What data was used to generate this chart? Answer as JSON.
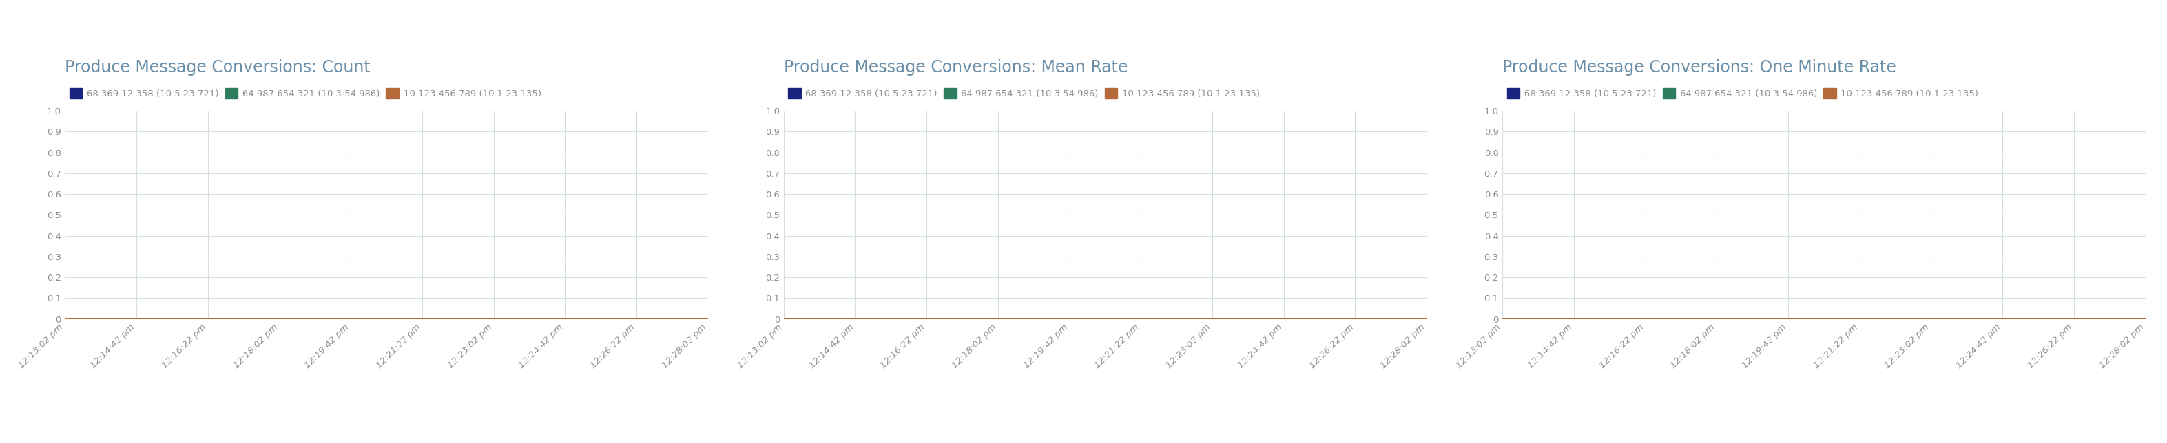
{
  "charts": [
    {
      "title": "Produce Message Conversions: Count",
      "title_color": "#6b8fa8"
    },
    {
      "title": "Produce Message Conversions: Mean Rate",
      "title_color": "#6b8fa8"
    },
    {
      "title": "Produce Message Conversions: One Minute Rate",
      "title_color": "#6b8fa8"
    }
  ],
  "legend_entries": [
    {
      "label": "68.369.12.358 (10.5.23.721)",
      "color": "#1a237e"
    },
    {
      "label": "64.987.654.321 (10.3.54.986)",
      "color": "#2e7d5e"
    },
    {
      "label": "10.123.456.789 (10.1.23.135)",
      "color": "#b5693a"
    }
  ],
  "x_ticks": [
    "12:13:02 pm",
    "12:14:42 pm",
    "12:16:22 pm",
    "12:18:02 pm",
    "12:19:42 pm",
    "12:21:22 pm",
    "12:23:02 pm",
    "12:24:42 pm",
    "12:26:22 pm",
    "12:28:02 pm"
  ],
  "y_ticks": [
    0,
    0.1,
    0.2,
    0.3,
    0.4,
    0.5,
    0.6,
    0.7,
    0.8,
    0.9,
    1.0
  ],
  "ylim": [
    0,
    1.0
  ],
  "background_color": "#ffffff",
  "grid_color": "#d5dde5",
  "tick_color": "#909090",
  "title_fontsize": 17,
  "legend_fontsize": 9.5,
  "tick_fontsize": 9.5,
  "line_colors": [
    "#1a237e",
    "#2e7d5e",
    "#b5693a"
  ],
  "line_values": [
    0.0,
    0.0,
    0.0
  ]
}
